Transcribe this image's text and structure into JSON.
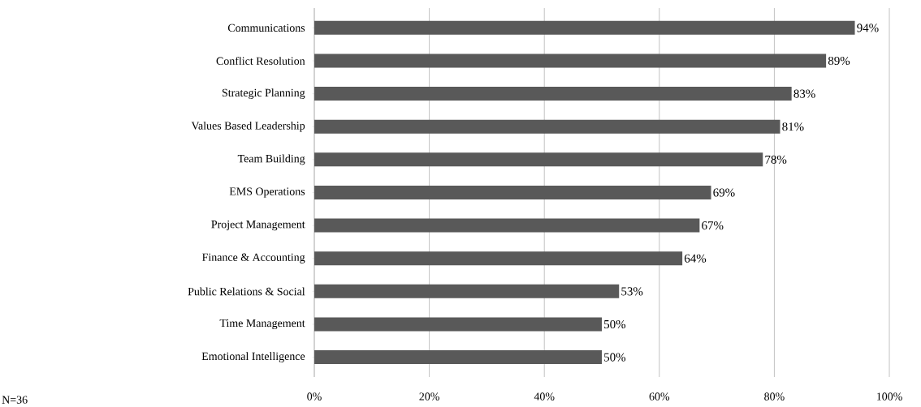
{
  "chart_data": {
    "type": "bar",
    "orientation": "horizontal",
    "categories": [
      "Communications",
      "Conflict Resolution",
      "Strategic Planning",
      "Values Based Leadership",
      "Team Building",
      "EMS Operations",
      "Project Management",
      "Finance & Accounting",
      "Public Relations & Social",
      "Time Management",
      "Emotional Intelligence"
    ],
    "values": [
      94,
      89,
      83,
      81,
      78,
      69,
      67,
      64,
      53,
      50,
      50
    ],
    "value_labels": [
      "94%",
      "89%",
      "83%",
      "81%",
      "78%",
      "69%",
      "67%",
      "64%",
      "53%",
      "50%",
      "50%"
    ],
    "color": "#595959",
    "xlim": [
      0,
      100
    ],
    "xticks": [
      {
        "value": 0,
        "label": "0%"
      },
      {
        "value": 20,
        "label": "20%"
      },
      {
        "value": 40,
        "label": "40%"
      },
      {
        "value": 60,
        "label": "60%"
      },
      {
        "value": 80,
        "label": "80%"
      },
      {
        "value": 100,
        "label": "100%"
      }
    ],
    "grid": "x",
    "annotations": [
      "N=36"
    ]
  }
}
